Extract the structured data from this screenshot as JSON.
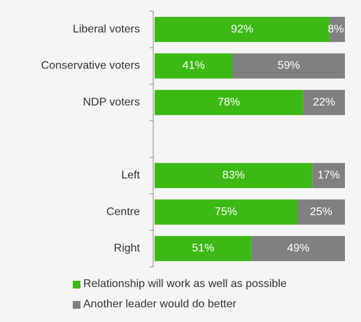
{
  "chart_data": {
    "type": "bar",
    "orientation": "horizontal",
    "stacked": true,
    "categories": [
      "Liberal voters",
      "Conservative voters",
      "NDP voters",
      "",
      "Left",
      "Centre",
      "Right"
    ],
    "series": [
      {
        "name": "Relationship will work as well as possible",
        "values": [
          92,
          41,
          78,
          null,
          83,
          75,
          51
        ],
        "labels": [
          "92%",
          "41%",
          "78%",
          "",
          "83%",
          "75%",
          "51%"
        ]
      },
      {
        "name": "Another leader would do better",
        "values": [
          8,
          59,
          22,
          null,
          17,
          25,
          49
        ],
        "labels": [
          "8%",
          "59%",
          "22%",
          "",
          "17%",
          "25%",
          "49%"
        ]
      }
    ],
    "colors": [
      "#3cb914",
      "#808080"
    ],
    "xlim": [
      0,
      100
    ],
    "legend_position": "bottom",
    "grid": false
  }
}
